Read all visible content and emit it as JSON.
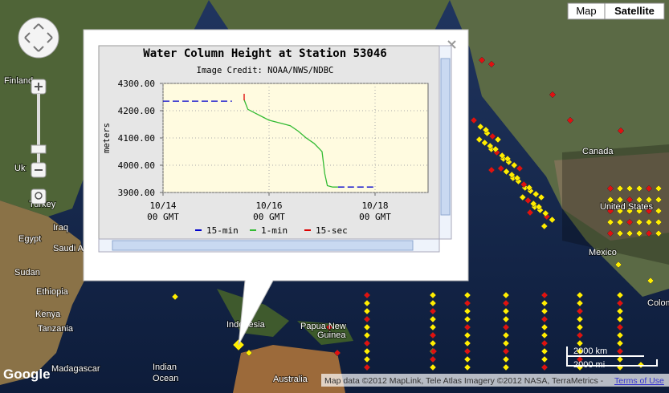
{
  "map_type": {
    "map": "Map",
    "satellite": "Satellite"
  },
  "labels": [
    "Finland",
    "Uk",
    "Turkey",
    "Egypt",
    "Iraq",
    "Saudi Arabia",
    "Sudan",
    "Ethiopia",
    "Kenya",
    "Tanzania",
    "Madagascar",
    "Indian",
    "Ocean",
    "Indonesia",
    "Papua New",
    "Guinea",
    "Australia",
    "Canada",
    "United States",
    "Mexico",
    "Colom"
  ],
  "scale": {
    "km": "2000 km",
    "mi": "2000 mi"
  },
  "attribution": "Map data ©2012 MapLink, Tele Atlas Imagery ©2012 NASA, TerraMetrics -",
  "terms": "Terms of Use",
  "logo": "Google",
  "chart_data": {
    "type": "line",
    "title": "Water Column Height at Station 53046",
    "subtitle": "Image Credit: NOAA/NWS/NDBC",
    "y_label": "meters",
    "xlim": [
      14,
      19
    ],
    "ylim": [
      3900,
      4300
    ],
    "xticks": [
      {
        "value": 14,
        "label": [
          "10/14",
          "00 GMT"
        ]
      },
      {
        "value": 16,
        "label": [
          "10/16",
          "00 GMT"
        ]
      },
      {
        "value": 18,
        "label": [
          "10/18",
          "00 GMT"
        ]
      }
    ],
    "yticks": [
      {
        "value": 3900,
        "label": "3900.00"
      },
      {
        "value": 4000,
        "label": "4000.00"
      },
      {
        "value": 4100,
        "label": "4100.00"
      },
      {
        "value": 4200,
        "label": "4200.00"
      },
      {
        "value": 4300,
        "label": "4300.00"
      }
    ],
    "grid": true,
    "series": [
      {
        "name": "15-min",
        "color": "#0000cc",
        "dashed": true,
        "x": [
          14,
          15.3,
          16.5,
          17.3,
          18
        ],
        "values": [
          4235,
          4235,
          null,
          3920,
          3920
        ]
      },
      {
        "name": "1-min",
        "color": "#33bb33",
        "x": [
          15.53,
          15.6,
          15.75,
          15.9,
          16.0,
          16.2,
          16.4,
          16.55,
          16.7,
          16.85,
          16.95,
          17.0,
          17.05,
          17.1,
          17.2,
          17.3
        ],
        "values": [
          4240,
          4205,
          4190,
          4175,
          4165,
          4155,
          4145,
          4125,
          4100,
          4080,
          4060,
          4050,
          3970,
          3925,
          3920,
          3920
        ]
      },
      {
        "name": "15-sec",
        "color": "#dd0000",
        "x": [
          15.53,
          15.53
        ],
        "values": [
          4262,
          4238
        ]
      }
    ]
  }
}
